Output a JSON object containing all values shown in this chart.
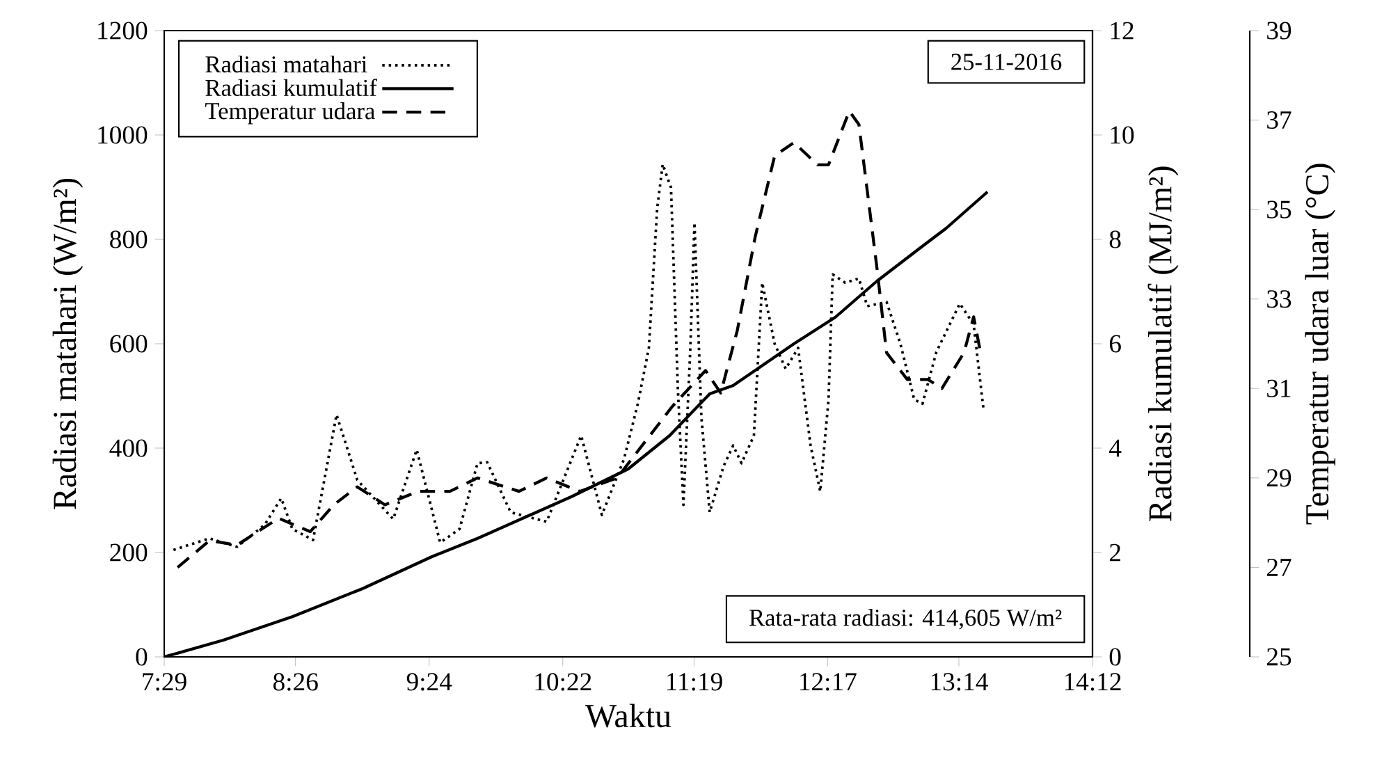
{
  "chart_data": {
    "type": "line",
    "xlabel": "Waktu",
    "ylabel": "Radiasi matahari (W/m²)",
    "y2label": "Radiasi kumulatif (MJ/m²)",
    "y3label": "Temperatur udara luar (°C)",
    "annotations": [
      "25-11-2016",
      "Rata-rata radiasi: 414,605 W/m²"
    ],
    "xlim": [
      7.483,
      14.2
    ],
    "xticks": [
      {
        "value": 7.483,
        "label": "7:29"
      },
      {
        "value": 8.433,
        "label": "8:26"
      },
      {
        "value": 9.4,
        "label": "9:24"
      },
      {
        "value": 10.367,
        "label": "10:22"
      },
      {
        "value": 11.317,
        "label": "11:19"
      },
      {
        "value": 12.283,
        "label": "12:17"
      },
      {
        "value": 13.233,
        "label": "13:14"
      },
      {
        "value": 14.2,
        "label": "14:12"
      }
    ],
    "ylim": [
      0,
      1200
    ],
    "yticks": [
      0,
      200,
      400,
      600,
      800,
      1000,
      1200
    ],
    "y2lim": [
      0,
      12
    ],
    "y2ticks": [
      0,
      2,
      4,
      6,
      8,
      10,
      12
    ],
    "y3lim": [
      25,
      39
    ],
    "y3ticks": [
      25,
      27,
      29,
      31,
      33,
      35,
      37,
      39
    ],
    "legend": "top left",
    "series": [
      {
        "name": "Radiasi matahari",
        "color": "#000000",
        "line_style": "dotted",
        "axis": "y",
        "x": [
          7.55,
          7.81,
          8.01,
          8.21,
          8.33,
          8.41,
          8.56,
          8.73,
          8.88,
          9.14,
          9.31,
          9.48,
          9.62,
          9.75,
          9.82,
          9.99,
          10.25,
          10.5,
          10.65,
          10.81,
          10.91,
          10.99,
          11.05,
          11.09,
          11.15,
          11.2,
          11.24,
          11.29,
          11.32,
          11.37,
          11.43,
          11.53,
          11.6,
          11.66,
          11.75,
          11.81,
          11.9,
          11.98,
          12.07,
          12.16,
          12.23,
          12.29,
          12.32,
          12.41,
          12.51,
          12.57,
          12.71,
          12.81,
          12.91,
          12.97,
          13.07,
          13.24,
          13.34,
          13.41
        ],
        "values": [
          205,
          227,
          211,
          253,
          304,
          245,
          224,
          464,
          339,
          264,
          397,
          219,
          245,
          371,
          373,
          277,
          259,
          424,
          272,
          379,
          485,
          592,
          859,
          944,
          899,
          512,
          291,
          592,
          832,
          459,
          277,
          365,
          405,
          371,
          424,
          717,
          600,
          552,
          592,
          405,
          317,
          493,
          733,
          717,
          725,
          672,
          680,
          600,
          493,
          485,
          584,
          677,
          637,
          477
        ]
      },
      {
        "name": "Radiasi kumulatif",
        "color": "#000000",
        "line_style": "solid",
        "axis": "y2",
        "x": [
          7.483,
          7.91,
          8.41,
          8.92,
          9.42,
          9.75,
          10.43,
          10.84,
          11.14,
          11.43,
          11.6,
          12.04,
          12.34,
          12.64,
          12.97,
          13.14,
          13.44
        ],
        "values": [
          0,
          0.32,
          0.77,
          1.31,
          1.92,
          2.27,
          3.07,
          3.6,
          4.24,
          5.04,
          5.2,
          6.0,
          6.51,
          7.2,
          7.87,
          8.21,
          8.91
        ]
      },
      {
        "name": "Temperatur udara",
        "color": "#000000",
        "line_style": "dashed",
        "axis": "y3",
        "x": [
          7.58,
          7.81,
          8.01,
          8.31,
          8.54,
          8.71,
          8.88,
          9.08,
          9.32,
          9.55,
          9.75,
          10.05,
          10.25,
          10.49,
          10.76,
          11.16,
          11.4,
          11.51,
          11.63,
          11.76,
          11.9,
          12.04,
          12.21,
          12.29,
          12.44,
          12.51,
          12.64,
          12.71,
          12.86,
          13.01,
          13.11,
          13.27,
          13.34,
          13.39
        ],
        "values": [
          27.0,
          27.6,
          27.5,
          28.1,
          27.8,
          28.4,
          28.8,
          28.4,
          28.7,
          28.7,
          29.0,
          28.7,
          29.0,
          28.7,
          29.0,
          30.6,
          31.4,
          30.9,
          32.3,
          34.4,
          36.2,
          36.5,
          36.0,
          36.0,
          37.2,
          36.9,
          33.7,
          31.8,
          31.2,
          31.2,
          31.0,
          31.8,
          32.6,
          31.8
        ]
      }
    ]
  }
}
